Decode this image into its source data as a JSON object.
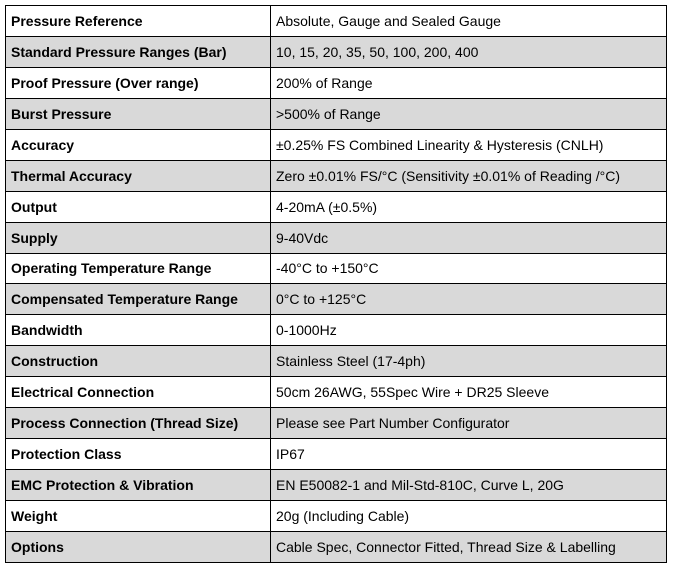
{
  "table": {
    "rows": [
      [
        "Pressure Reference",
        "Absolute, Gauge and Sealed Gauge"
      ],
      [
        "Standard Pressure Ranges (Bar)",
        "10, 15, 20, 35, 50, 100, 200, 400"
      ],
      [
        "Proof Pressure (Over range)",
        "200% of Range"
      ],
      [
        "Burst Pressure",
        ">500% of Range"
      ],
      [
        "Accuracy",
        "±0.25% FS Combined Linearity & Hysteresis (CNLH)"
      ],
      [
        "Thermal Accuracy",
        "Zero ±0.01% FS/°C (Sensitivity ±0.01% of Reading /°C)"
      ],
      [
        "Output",
        "4-20mA (±0.5%)"
      ],
      [
        "Supply",
        "9-40Vdc"
      ],
      [
        "Operating Temperature Range",
        "-40°C to +150°C"
      ],
      [
        "Compensated Temperature Range",
        "0°C to +125°C"
      ],
      [
        "Bandwidth",
        "0-1000Hz"
      ],
      [
        "Construction",
        "Stainless Steel (17-4ph)"
      ],
      [
        "Electrical Connection",
        "50cm 26AWG, 55Spec Wire + DR25 Sleeve"
      ],
      [
        "Process Connection (Thread Size)",
        "Please see Part Number Configurator"
      ],
      [
        "Protection Class",
        "IP67"
      ],
      [
        "EMC Protection & Vibration",
        "EN E50082-1 and Mil-Std-810C, Curve L, 20G"
      ],
      [
        "Weight",
        "20g (Including Cable)"
      ],
      [
        "Options",
        "Cable Spec, Connector Fitted, Thread Size & Labelling"
      ]
    ]
  }
}
